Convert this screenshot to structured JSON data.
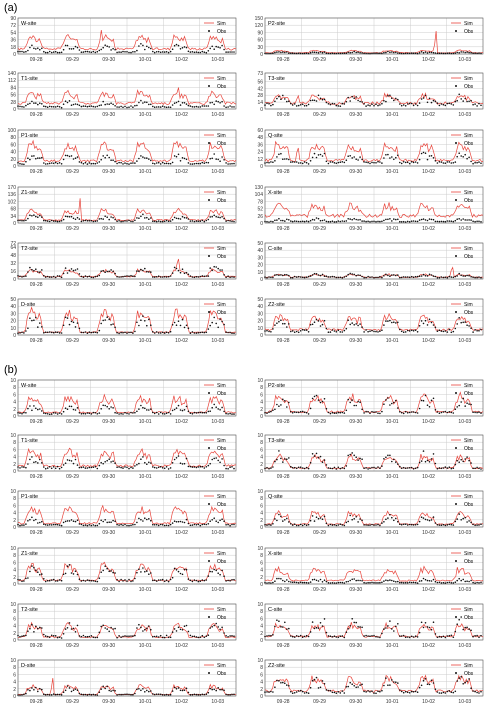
{
  "figure": {
    "panels": [
      {
        "label": "(a)",
        "charts": [
          {
            "site": "W-site",
            "yticks": [
              0,
              18,
              36,
              54,
              72,
              90
            ],
            "ylim": [
              0,
              90
            ],
            "sim_base": 14,
            "sim_amp": 34,
            "obs_base": 5,
            "obs_amp": 16,
            "spikes": [
              [
                2.3,
                72
              ]
            ]
          },
          {
            "site": "P2-site",
            "yticks": [
              0,
              30,
              60,
              90,
              120,
              150
            ],
            "ylim": [
              0,
              150
            ],
            "sim_base": 6,
            "sim_amp": 10,
            "obs_base": 3,
            "obs_amp": 6,
            "spikes": [
              [
                4.7,
                115
              ]
            ]
          },
          {
            "site": "T1-site",
            "yticks": [
              0,
              28,
              56,
              84,
              112,
              140
            ],
            "ylim": [
              0,
              140
            ],
            "sim_base": 25,
            "sim_amp": 45,
            "obs_base": 10,
            "obs_amp": 20,
            "spikes": [
              [
                4.4,
                125
              ]
            ]
          },
          {
            "site": "T3-site",
            "yticks": [
              0,
              14,
              28,
              42,
              56,
              73
            ],
            "ylim": [
              0,
              73
            ],
            "sim_base": 14,
            "sim_amp": 16,
            "obs_base": 10,
            "obs_amp": 16,
            "spikes": [
              [
                0.9,
                40
              ]
            ]
          },
          {
            "site": "P1-site",
            "yticks": [
              0,
              20,
              40,
              60,
              80,
              100
            ],
            "ylim": [
              0,
              100
            ],
            "sim_base": 15,
            "sim_amp": 50,
            "obs_base": 8,
            "obs_amp": 20,
            "spikes": [
              [
                4.6,
                80
              ]
            ]
          },
          {
            "site": "Q-site",
            "yticks": [
              0,
              12,
              24,
              36,
              48,
              60
            ],
            "ylim": [
              0,
              60
            ],
            "sim_base": 10,
            "sim_amp": 28,
            "obs_base": 6,
            "obs_amp": 14,
            "spikes": [
              [
                0.9,
                45
              ]
            ]
          },
          {
            "site": "Z1-site",
            "yticks": [
              0,
              34,
              68,
              102,
              136,
              170
            ],
            "ylim": [
              0,
              170
            ],
            "sim_base": 15,
            "sim_amp": 50,
            "obs_base": 10,
            "obs_amp": 25,
            "spikes": [
              [
                1.7,
                140
              ]
            ]
          },
          {
            "site": "X-site",
            "yticks": [
              0,
              26,
              52,
              78,
              104,
              130
            ],
            "ylim": [
              0,
              130
            ],
            "sim_base": 30,
            "sim_amp": 40,
            "obs_base": 6,
            "obs_amp": 10,
            "spikes": []
          },
          {
            "site": "T2-site",
            "yticks": [
              0,
              16,
              32,
              48,
              64,
              72
            ],
            "ylim": [
              0,
              72
            ],
            "sim_base": 5,
            "sim_amp": 14,
            "obs_base": 5,
            "obs_amp": 18,
            "spikes": [
              [
                4.4,
                60
              ]
            ]
          },
          {
            "site": "C-site",
            "yticks": [
              0,
              10,
              20,
              30,
              40,
              50
            ],
            "ylim": [
              0,
              50
            ],
            "sim_base": 3,
            "sim_amp": 4,
            "obs_base": 3,
            "obs_amp": 4,
            "spikes": [
              [
                5.15,
                24
              ]
            ]
          },
          {
            "site": "D-site",
            "yticks": [
              0,
              10,
              20,
              30,
              40,
              50
            ],
            "ylim": [
              0,
              50
            ],
            "sim_base": 3,
            "sim_amp": 30,
            "obs_base": 3,
            "obs_amp": 22,
            "spikes": []
          },
          {
            "site": "Z2-site",
            "yticks": [
              0,
              10,
              20,
              30,
              40,
              50
            ],
            "ylim": [
              0,
              50
            ],
            "sim_base": 8,
            "sim_amp": 20,
            "obs_base": 6,
            "obs_amp": 18,
            "spikes": []
          }
        ]
      },
      {
        "label": "(b)",
        "charts": [
          {
            "site": "W-site",
            "yticks": [
              0,
              2,
              4,
              6,
              8,
              10
            ],
            "ylim": [
              0,
              10
            ],
            "sim_base": 1,
            "sim_amp": 4.5,
            "obs_base": 0.8,
            "obs_amp": 2,
            "spikes": []
          },
          {
            "site": "P2-site",
            "yticks": [
              0,
              2,
              4,
              6,
              8,
              10
            ],
            "ylim": [
              0,
              10
            ],
            "sim_base": 1.2,
            "sim_amp": 4.5,
            "obs_base": 1,
            "obs_amp": 4,
            "spikes": []
          },
          {
            "site": "T1-site",
            "yticks": [
              0,
              2,
              4,
              6,
              8,
              10
            ],
            "ylim": [
              0,
              10
            ],
            "sim_base": 1.5,
            "sim_amp": 4.5,
            "obs_base": 1,
            "obs_amp": 2.5,
            "spikes": []
          },
          {
            "site": "T3-site",
            "yticks": [
              0,
              2,
              4,
              6,
              8,
              10
            ],
            "ylim": [
              0,
              10
            ],
            "sim_base": 0.8,
            "sim_amp": 3.5,
            "obs_base": 0.8,
            "obs_amp": 4,
            "spikes": []
          },
          {
            "site": "P1-site",
            "yticks": [
              0,
              2,
              4,
              6,
              8,
              10
            ],
            "ylim": [
              0,
              10
            ],
            "sim_base": 1,
            "sim_amp": 4.5,
            "obs_base": 0.6,
            "obs_amp": 1.8,
            "spikes": []
          },
          {
            "site": "Q-site",
            "yticks": [
              0,
              2,
              4,
              6,
              8,
              10
            ],
            "ylim": [
              0,
              10
            ],
            "sim_base": 0.8,
            "sim_amp": 3.5,
            "obs_base": 0.6,
            "obs_amp": 2.5,
            "spikes": []
          },
          {
            "site": "Z1-site",
            "yticks": [
              0,
              2,
              4,
              6,
              8,
              10
            ],
            "ylim": [
              0,
              10
            ],
            "sim_base": 1,
            "sim_amp": 4.5,
            "obs_base": 1,
            "obs_amp": 3.5,
            "spikes": []
          },
          {
            "site": "X-site",
            "yticks": [
              0,
              2,
              4,
              6,
              8,
              10
            ],
            "ylim": [
              0,
              10
            ],
            "sim_base": 1,
            "sim_amp": 3.5,
            "obs_base": 0.4,
            "obs_amp": 1,
            "spikes": []
          },
          {
            "site": "T2-site",
            "yticks": [
              0,
              2,
              4,
              6,
              8,
              10
            ],
            "ylim": [
              0,
              10
            ],
            "sim_base": 0.8,
            "sim_amp": 3.5,
            "obs_base": 1,
            "obs_amp": 3.5,
            "spikes": []
          },
          {
            "site": "C-site",
            "yticks": [
              0,
              2,
              4,
              6,
              8,
              10
            ],
            "ylim": [
              0,
              10
            ],
            "sim_base": 1,
            "sim_amp": 3.5,
            "obs_base": 1,
            "obs_amp": 4.5,
            "spikes": []
          },
          {
            "site": "D-site",
            "yticks": [
              0,
              2,
              4,
              6,
              8,
              10
            ],
            "ylim": [
              0,
              10
            ],
            "sim_base": 0.4,
            "sim_amp": 2.5,
            "obs_base": 0.4,
            "obs_amp": 2,
            "spikes": [
              [
                0.95,
                6
              ]
            ]
          },
          {
            "site": "Z2-site",
            "yticks": [
              0,
              2,
              4,
              6,
              8,
              10
            ],
            "ylim": [
              0,
              10
            ],
            "sim_base": 1.5,
            "sim_amp": 4,
            "obs_base": 1.2,
            "obs_amp": 3.5,
            "spikes": []
          }
        ]
      }
    ],
    "xticks": [
      "09-28",
      "09-29",
      "09-30",
      "10-01",
      "10-02",
      "10-03"
    ],
    "legend": {
      "sim": "Sim",
      "obs": "Obs"
    },
    "colors": {
      "sim": "#e8453c",
      "obs": "#111111",
      "grid": "#cccccc",
      "frame": "#555555"
    }
  },
  "chart_data": {
    "type": "line",
    "x": [
      "09-28",
      "09-29",
      "09-30",
      "10-01",
      "10-02",
      "10-03"
    ],
    "series": [
      {
        "name": "Sim"
      },
      {
        "name": "Obs"
      }
    ],
    "grid": true,
    "legend_position": "top-right"
  }
}
